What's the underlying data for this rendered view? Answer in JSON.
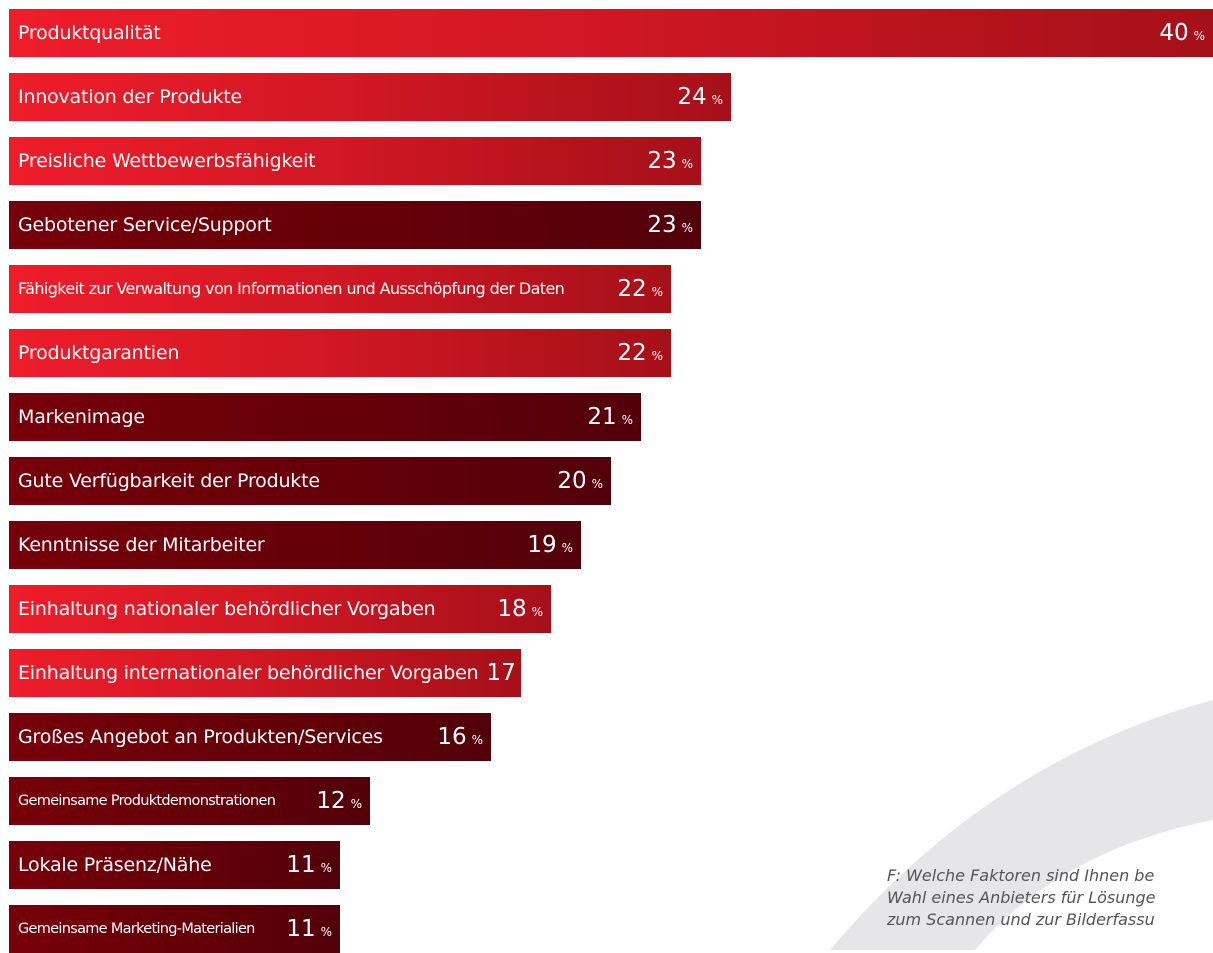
{
  "chart_data": {
    "type": "bar",
    "orientation": "horizontal",
    "categories": [
      "Produktqualität",
      "Innovation der Produkte",
      "Preisliche Wettbewerbsfähigkeit",
      "Gebotener Service/Support",
      "Fähigkeit zur Verwaltung von Informationen und Ausschöpfung der Daten",
      "Produktgarantien",
      "Markenimage",
      "Gute Verfügbarkeit der Produkte",
      "Kenntnisse der Mitarbeiter",
      "Einhaltung nationaler behördlicher Vorgaben",
      "Einhaltung internationaler behördlicher Vorgaben",
      "Großes Angebot an Produkten/Services",
      "Gemeinsame Produktdemonstrationen",
      "Lokale Präsenz/Nähe",
      "Gemeinsame Marketing-Materialien"
    ],
    "values": [
      40,
      24,
      23,
      23,
      22,
      22,
      21,
      20,
      19,
      18,
      17,
      16,
      12,
      11,
      11
    ],
    "value_suffix": "%",
    "bar_colors": [
      "red",
      "red",
      "red",
      "dark",
      "red",
      "red",
      "dark",
      "dark",
      "dark",
      "red",
      "red",
      "dark",
      "dark",
      "dark",
      "dark"
    ],
    "colors": {
      "red": "#ee1d2a",
      "dark": "#620008"
    },
    "xlim": [
      0,
      40
    ],
    "grid": false,
    "legend": "none"
  },
  "question": "F: Welche Faktoren sind Ihnen be\nWahl eines Anbieters für Lösunge\nzum Scannen und zur Bilderfassu"
}
